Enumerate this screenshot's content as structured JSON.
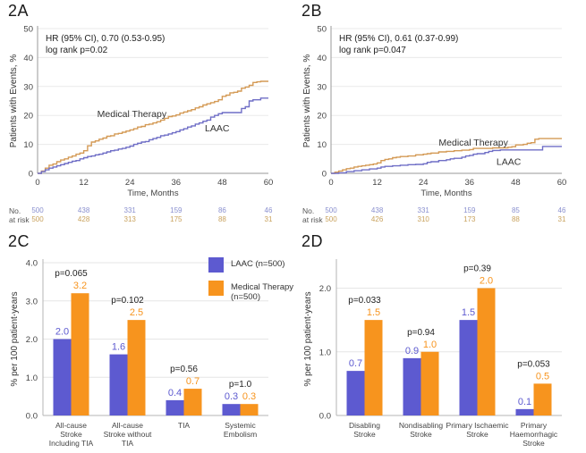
{
  "panels": {
    "a": "2A",
    "b": "2B",
    "c": "2C",
    "d": "2D"
  },
  "colors": {
    "laac": "#5d5ad0",
    "mt": "#f7941e",
    "laac_line": "#6f6ec6",
    "mt_line": "#d49a55",
    "laac_risk": "#8a90cf",
    "mt_risk": "#c9a25e"
  },
  "chart_data": [
    {
      "type": "line",
      "panel": "2A",
      "step": true,
      "xlabel": "Time, Months",
      "ylabel": "Patients with Events, %",
      "xlim": [
        0,
        60
      ],
      "ylim": [
        0,
        50
      ],
      "xticks": [
        0,
        12,
        24,
        36,
        48,
        60
      ],
      "yticks": [
        0,
        10,
        20,
        30,
        40,
        50
      ],
      "grid": "horizontal",
      "annotation": [
        "HR (95% CI), 0.70 (0.53-0.95)",
        "log rank p=0.02"
      ],
      "series": [
        {
          "name": "Medical Therapy",
          "color_key": "mt_line",
          "label_pos": [
            15.5,
            19.5
          ],
          "points": [
            [
              0,
              0
            ],
            [
              1,
              0.8
            ],
            [
              2,
              1.8
            ],
            [
              3,
              2.8
            ],
            [
              4,
              3.2
            ],
            [
              5,
              4
            ],
            [
              6,
              4.6
            ],
            [
              7,
              5
            ],
            [
              8,
              5.6
            ],
            [
              9,
              6
            ],
            [
              10,
              6.6
            ],
            [
              11,
              7
            ],
            [
              12,
              7.8
            ],
            [
              13,
              9.5
            ],
            [
              14,
              10.8
            ],
            [
              15,
              11.2
            ],
            [
              16,
              11.8
            ],
            [
              17,
              12.2
            ],
            [
              18,
              12.8
            ],
            [
              19,
              13
            ],
            [
              20,
              13.6
            ],
            [
              21,
              13.8
            ],
            [
              22,
              14.2
            ],
            [
              23,
              14.6
            ],
            [
              24,
              15
            ],
            [
              25,
              15.4
            ],
            [
              26,
              16
            ],
            [
              27,
              16.2
            ],
            [
              28,
              16.8
            ],
            [
              29,
              17
            ],
            [
              30,
              17.4
            ],
            [
              31,
              17.8
            ],
            [
              32,
              18.4
            ],
            [
              33,
              19
            ],
            [
              34,
              19.6
            ],
            [
              35,
              19.8
            ],
            [
              36,
              20.2
            ],
            [
              37,
              20.8
            ],
            [
              38,
              21.2
            ],
            [
              39,
              21.6
            ],
            [
              40,
              22
            ],
            [
              41,
              22.6
            ],
            [
              42,
              23
            ],
            [
              43,
              23.6
            ],
            [
              44,
              24
            ],
            [
              45,
              24.4
            ],
            [
              46,
              24.8
            ],
            [
              47,
              25.4
            ],
            [
              48,
              26.6
            ],
            [
              49,
              27
            ],
            [
              50,
              27.8
            ],
            [
              51,
              28
            ],
            [
              52,
              28.4
            ],
            [
              53,
              29.4
            ],
            [
              54,
              29.8
            ],
            [
              55,
              30.4
            ],
            [
              56,
              31.4
            ],
            [
              57,
              31.6
            ],
            [
              58,
              31.8
            ],
            [
              60,
              31.8
            ]
          ]
        },
        {
          "name": "LAAC",
          "color_key": "laac_line",
          "label_pos": [
            43.5,
            14.5
          ],
          "points": [
            [
              0,
              0
            ],
            [
              1,
              0.6
            ],
            [
              2,
              1.2
            ],
            [
              3,
              1.8
            ],
            [
              4,
              2.2
            ],
            [
              5,
              2.6
            ],
            [
              6,
              3
            ],
            [
              7,
              3.4
            ],
            [
              8,
              3.8
            ],
            [
              9,
              4.2
            ],
            [
              10,
              4.4
            ],
            [
              11,
              5
            ],
            [
              12,
              5.4
            ],
            [
              13,
              5.8
            ],
            [
              14,
              6
            ],
            [
              15,
              6.4
            ],
            [
              16,
              6.6
            ],
            [
              17,
              7
            ],
            [
              18,
              7.4
            ],
            [
              19,
              7.8
            ],
            [
              20,
              8
            ],
            [
              21,
              8.4
            ],
            [
              22,
              8.6
            ],
            [
              23,
              9
            ],
            [
              24,
              9.4
            ],
            [
              25,
              10
            ],
            [
              26,
              10.4
            ],
            [
              27,
              10.8
            ],
            [
              28,
              11
            ],
            [
              29,
              11.6
            ],
            [
              30,
              12
            ],
            [
              31,
              12.4
            ],
            [
              32,
              13
            ],
            [
              33,
              13.2
            ],
            [
              34,
              13.6
            ],
            [
              35,
              14
            ],
            [
              36,
              14.4
            ],
            [
              37,
              15
            ],
            [
              38,
              15.4
            ],
            [
              39,
              16
            ],
            [
              40,
              16.4
            ],
            [
              41,
              17
            ],
            [
              42,
              17.4
            ],
            [
              43,
              18
            ],
            [
              44,
              18.4
            ],
            [
              45,
              19.4
            ],
            [
              46,
              20
            ],
            [
              47,
              20.6
            ],
            [
              48,
              21
            ],
            [
              52,
              21
            ],
            [
              53,
              22.4
            ],
            [
              54,
              23
            ],
            [
              55,
              25
            ],
            [
              56,
              25.4
            ],
            [
              58,
              26
            ],
            [
              60,
              26
            ]
          ]
        }
      ],
      "risk_table": {
        "label": [
          "No.",
          "at risk"
        ],
        "rows": [
          {
            "color_key": "laac_risk",
            "values": [
              500,
              438,
              331,
              159,
              86,
              46
            ]
          },
          {
            "color_key": "mt_risk",
            "values": [
              500,
              428,
              313,
              175,
              88,
              31
            ]
          }
        ]
      }
    },
    {
      "type": "line",
      "panel": "2B",
      "step": true,
      "xlabel": "Time, Months",
      "ylabel": "Patients with Events, %",
      "xlim": [
        0,
        60
      ],
      "ylim": [
        0,
        50
      ],
      "xticks": [
        0,
        12,
        24,
        36,
        48,
        60
      ],
      "yticks": [
        0,
        10,
        20,
        30,
        40,
        50
      ],
      "grid": "horizontal",
      "annotation": [
        "HR (95% CI), 0.61 (0.37-0.99)",
        "log rank p=0.047"
      ],
      "series": [
        {
          "name": "Medical Therapy",
          "color_key": "mt_line",
          "label_pos": [
            28,
            9.5
          ],
          "points": [
            [
              0,
              0
            ],
            [
              1,
              0.4
            ],
            [
              2,
              0.8
            ],
            [
              3,
              1.2
            ],
            [
              4,
              1.6
            ],
            [
              5,
              1.8
            ],
            [
              6,
              2.2
            ],
            [
              7,
              2.4
            ],
            [
              8,
              2.6
            ],
            [
              9,
              2.8
            ],
            [
              10,
              3
            ],
            [
              11,
              3.2
            ],
            [
              12,
              3.6
            ],
            [
              13,
              4.4
            ],
            [
              14,
              4.8
            ],
            [
              15,
              5
            ],
            [
              16,
              5.4
            ],
            [
              17,
              5.6
            ],
            [
              18,
              5.8
            ],
            [
              20,
              6
            ],
            [
              22,
              6.4
            ],
            [
              24,
              6.6
            ],
            [
              25,
              6.8
            ],
            [
              26,
              7
            ],
            [
              28,
              7.4
            ],
            [
              30,
              7.6
            ],
            [
              32,
              7.8
            ],
            [
              34,
              8
            ],
            [
              36,
              8.2
            ],
            [
              37,
              8.6
            ],
            [
              40,
              8.6
            ],
            [
              42,
              8.8
            ],
            [
              44,
              8.8
            ],
            [
              46,
              9
            ],
            [
              47,
              9.2
            ],
            [
              48,
              9.8
            ],
            [
              50,
              10
            ],
            [
              51,
              10.4
            ],
            [
              52,
              10.6
            ],
            [
              53,
              11.8
            ],
            [
              54,
              12
            ],
            [
              60,
              12
            ]
          ]
        },
        {
          "name": "LAAC",
          "color_key": "laac_line",
          "label_pos": [
            43,
            3
          ],
          "points": [
            [
              0,
              0
            ],
            [
              2,
              0.2
            ],
            [
              4,
              0.6
            ],
            [
              6,
              0.9
            ],
            [
              8,
              1.2
            ],
            [
              10,
              1.5
            ],
            [
              12,
              1.8
            ],
            [
              13,
              2.2
            ],
            [
              14,
              2.4
            ],
            [
              16,
              2.6
            ],
            [
              18,
              2.8
            ],
            [
              20,
              3
            ],
            [
              22,
              3.1
            ],
            [
              24,
              3.3
            ],
            [
              25,
              3.8
            ],
            [
              26,
              4
            ],
            [
              28,
              4.4
            ],
            [
              30,
              4.7
            ],
            [
              31,
              5
            ],
            [
              32,
              5.2
            ],
            [
              34,
              5.6
            ],
            [
              35,
              6
            ],
            [
              36,
              6.2
            ],
            [
              37,
              6.6
            ],
            [
              38,
              6.8
            ],
            [
              40,
              7.2
            ],
            [
              41,
              7.6
            ],
            [
              42,
              7.9
            ],
            [
              44,
              8.1
            ],
            [
              54,
              8.1
            ],
            [
              55,
              9.3
            ],
            [
              60,
              9.3
            ]
          ]
        }
      ],
      "risk_table": {
        "label": [
          "No.",
          "at risk"
        ],
        "rows": [
          {
            "color_key": "laac_risk",
            "values": [
              500,
              438,
              331,
              159,
              85,
              46
            ]
          },
          {
            "color_key": "mt_risk",
            "values": [
              500,
              426,
              310,
              173,
              88,
              31
            ]
          }
        ]
      }
    },
    {
      "type": "bar",
      "panel": "2C",
      "ylabel": "% per 100 patient-years",
      "ylim": [
        0,
        4.0
      ],
      "yticks": [
        0.0,
        1.0,
        2.0,
        3.0,
        4.0
      ],
      "grid": "horizontal",
      "legend_position": "top-right",
      "categories": [
        [
          "All-cause",
          "Stroke",
          "Including TIA"
        ],
        [
          "All-cause",
          "Stroke without",
          "TIA"
        ],
        [
          "TIA"
        ],
        [
          "Systemic",
          "Embolism"
        ]
      ],
      "p_values": [
        "p=0.065",
        "p=0.102",
        "p=0.56",
        "p=1.0"
      ],
      "series": [
        {
          "name": "LAAC (n=500)",
          "color_key": "laac",
          "values": [
            2.0,
            1.6,
            0.4,
            0.3
          ]
        },
        {
          "name": "Medical Therapy (n=500)",
          "color_key": "mt",
          "values": [
            3.2,
            2.5,
            0.7,
            0.3
          ]
        }
      ]
    },
    {
      "type": "bar",
      "panel": "2D",
      "ylabel": "% per 100 patient-years",
      "ylim": [
        0,
        2.4
      ],
      "yticks": [
        0.0,
        1.0,
        2.0
      ],
      "grid": "horizontal",
      "categories": [
        [
          "Disabling",
          "Stroke"
        ],
        [
          "Nondisabling",
          "Stroke"
        ],
        [
          "Primary Ischaemic",
          "Stroke"
        ],
        [
          "Primary",
          "Haemorrhagic",
          "Stroke"
        ]
      ],
      "p_values": [
        "p=0.033",
        "p=0.94",
        "p=0.39",
        "p=0.053"
      ],
      "series": [
        {
          "name": "LAAC (n=500)",
          "color_key": "laac",
          "values": [
            0.7,
            0.9,
            1.5,
            0.1
          ]
        },
        {
          "name": "Medical Therapy (n=500)",
          "color_key": "mt",
          "values": [
            1.5,
            1.0,
            2.0,
            0.5
          ]
        }
      ]
    }
  ]
}
